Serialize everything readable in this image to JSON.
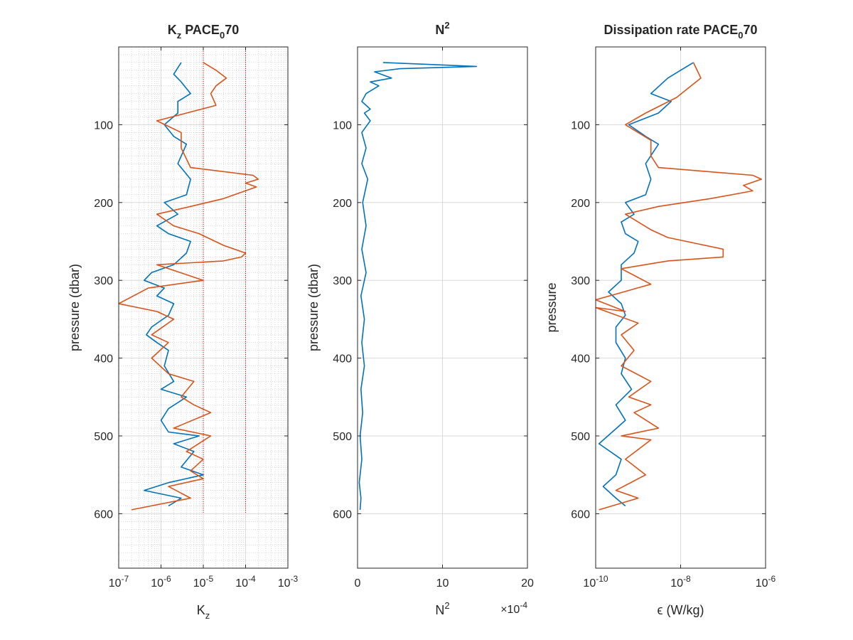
{
  "figure": {
    "background": "#ffffff"
  },
  "colors": {
    "blue": "#0072BD",
    "orange": "#D95319",
    "axis": "#262626",
    "grid": "#d9d9d9",
    "guide": "#cc0000"
  },
  "chart_data": [
    {
      "type": "line",
      "title": {
        "base": "K",
        "sub": "z",
        "rest": " PACE",
        "sub2": "0",
        "tail": "70"
      },
      "xlabel": {
        "base": "K",
        "sub": "z"
      },
      "ylabel": "pressure (dbar)",
      "xscale": "log",
      "xlim": [
        1e-07,
        0.001
      ],
      "ylim": [
        0,
        670
      ],
      "yreverse": true,
      "xticks": [
        1e-07,
        1e-06,
        1e-05,
        0.0001,
        0.001
      ],
      "xticklabels": [
        {
          "base": "10",
          "exp": "-7"
        },
        {
          "base": "10",
          "exp": "-6"
        },
        {
          "base": "10",
          "exp": "-5"
        },
        {
          "base": "10",
          "exp": "-4"
        },
        {
          "base": "10",
          "exp": "-3"
        }
      ],
      "yticks": [
        100,
        200,
        300,
        400,
        500,
        600
      ],
      "yticklabels": [
        "100",
        "200",
        "300",
        "400",
        "500",
        "600"
      ],
      "grid": "major-and-minor",
      "guides": [
        1e-05,
        0.0001
      ],
      "series": [
        {
          "color": "blue",
          "points": [
            [
              3e-06,
              20
            ],
            [
              2e-06,
              35
            ],
            [
              3e-06,
              45
            ],
            [
              5e-06,
              60
            ],
            [
              2.5e-06,
              70
            ],
            [
              2.5e-06,
              85
            ],
            [
              1.2e-06,
              100
            ],
            [
              2e-06,
              115
            ],
            [
              4e-06,
              125
            ],
            [
              2.5e-06,
              150
            ],
            [
              5e-06,
              170
            ],
            [
              4e-06,
              190
            ],
            [
              1.2e-06,
              200
            ],
            [
              2.5e-06,
              215
            ],
            [
              8e-07,
              230
            ],
            [
              1.5e-06,
              240
            ],
            [
              5e-06,
              250
            ],
            [
              4e-06,
              265
            ],
            [
              2e-06,
              280
            ],
            [
              6e-07,
              290
            ],
            [
              4e-07,
              300
            ],
            [
              1.2e-06,
              310
            ],
            [
              8e-07,
              320
            ],
            [
              2e-06,
              330
            ],
            [
              1.5e-06,
              345
            ],
            [
              6e-07,
              360
            ],
            [
              4.5e-07,
              370
            ],
            [
              8e-07,
              380
            ],
            [
              1.5e-06,
              390
            ],
            [
              1.2e-06,
              410
            ],
            [
              2e-06,
              430
            ],
            [
              1e-06,
              440
            ],
            [
              4e-06,
              450
            ],
            [
              1.5e-06,
              465
            ],
            [
              1e-06,
              480
            ],
            [
              1.5e-06,
              495
            ],
            [
              8e-06,
              500
            ],
            [
              2e-06,
              510
            ],
            [
              6e-06,
              520
            ],
            [
              3e-06,
              540
            ],
            [
              1e-05,
              550
            ],
            [
              1.5e-06,
              560
            ],
            [
              4e-07,
              570
            ],
            [
              3e-06,
              580
            ],
            [
              1.5e-06,
              590
            ]
          ]
        },
        {
          "color": "orange",
          "points": [
            [
              1e-05,
              20
            ],
            [
              2e-05,
              30
            ],
            [
              3.5e-05,
              40
            ],
            [
              2e-05,
              50
            ],
            [
              1.5e-05,
              60
            ],
            [
              2e-05,
              75
            ],
            [
              8e-07,
              95
            ],
            [
              3e-06,
              110
            ],
            [
              3e-06,
              130
            ],
            [
              5e-06,
              155
            ],
            [
              0.00015,
              165
            ],
            [
              0.0002,
              170
            ],
            [
              0.0001,
              175
            ],
            [
              0.00018,
              180
            ],
            [
              3e-05,
              195
            ],
            [
              5e-06,
              205
            ],
            [
              8e-07,
              215
            ],
            [
              2e-06,
              230
            ],
            [
              8e-06,
              240
            ],
            [
              3e-05,
              255
            ],
            [
              0.0001,
              265
            ],
            [
              8e-05,
              270
            ],
            [
              3e-05,
              275
            ],
            [
              8e-07,
              280
            ],
            [
              1e-05,
              300
            ],
            [
              5e-07,
              310
            ],
            [
              1e-07,
              330
            ],
            [
              8e-07,
              340
            ],
            [
              2e-06,
              350
            ],
            [
              6e-07,
              370
            ],
            [
              1.5e-06,
              380
            ],
            [
              6e-07,
              400
            ],
            [
              1.5e-06,
              420
            ],
            [
              6e-06,
              430
            ],
            [
              3e-06,
              450
            ],
            [
              6e-06,
              460
            ],
            [
              1.5e-05,
              470
            ],
            [
              2e-06,
              490
            ],
            [
              1.5e-05,
              500
            ],
            [
              4e-06,
              520
            ],
            [
              1e-05,
              530
            ],
            [
              5e-06,
              545
            ],
            [
              1e-05,
              555
            ],
            [
              1.5e-06,
              565
            ],
            [
              5e-06,
              580
            ],
            [
              2e-07,
              595
            ]
          ]
        }
      ]
    },
    {
      "type": "line",
      "title": {
        "base": "N",
        "exp": "2"
      },
      "xlabel": {
        "base": "N",
        "exp": "2"
      },
      "exponent_label": {
        "base": "×10",
        "exp": "-4"
      },
      "xscale": "linear",
      "xlim": [
        0,
        20
      ],
      "ylim": [
        0,
        670
      ],
      "yreverse": true,
      "xticks": [
        0,
        10,
        20
      ],
      "xticklabels": [
        "0",
        "10",
        "20"
      ],
      "yticks": [
        100,
        200,
        300,
        400,
        500,
        600
      ],
      "yticklabels": [
        "100",
        "200",
        "300",
        "400",
        "500",
        "600"
      ],
      "ylabel": "pressure (dbar)",
      "grid": "major",
      "series": [
        {
          "color": "blue",
          "points": [
            [
              3,
              20
            ],
            [
              14,
              25
            ],
            [
              5,
              28
            ],
            [
              2,
              32
            ],
            [
              4,
              40
            ],
            [
              1.5,
              45
            ],
            [
              2.5,
              50
            ],
            [
              1,
              60
            ],
            [
              0.5,
              70
            ],
            [
              1.5,
              80
            ],
            [
              0.8,
              85
            ],
            [
              1.5,
              95
            ],
            [
              0.5,
              110
            ],
            [
              1,
              130
            ],
            [
              0.5,
              150
            ],
            [
              1.2,
              170
            ],
            [
              0.6,
              200
            ],
            [
              1,
              230
            ],
            [
              0.5,
              260
            ],
            [
              1,
              290
            ],
            [
              0.4,
              320
            ],
            [
              0.8,
              350
            ],
            [
              0.5,
              380
            ],
            [
              0.8,
              410
            ],
            [
              0.4,
              440
            ],
            [
              0.6,
              470
            ],
            [
              0.3,
              500
            ],
            [
              0.5,
              530
            ],
            [
              0.2,
              560
            ],
            [
              0.4,
              580
            ],
            [
              0.3,
              595
            ]
          ]
        }
      ]
    },
    {
      "type": "line",
      "title": {
        "base": "Dissipation rate PACE",
        "sub": "0",
        "tail": "70"
      },
      "xlabel": "ϵ (W/kg)",
      "ylabel": "pressure",
      "xscale": "log",
      "xlim": [
        1e-10,
        1e-06
      ],
      "ylim": [
        0,
        670
      ],
      "yreverse": true,
      "xticks": [
        1e-10,
        1e-08,
        1e-06
      ],
      "xticklabels": [
        {
          "base": "10",
          "exp": "-10"
        },
        {
          "base": "10",
          "exp": "-8"
        },
        {
          "base": "10",
          "exp": "-6"
        }
      ],
      "yticks": [
        100,
        200,
        300,
        400,
        500,
        600
      ],
      "yticklabels": [
        "100",
        "200",
        "300",
        "400",
        "500",
        "600"
      ],
      "grid": "major",
      "series": [
        {
          "color": "blue",
          "points": [
            [
              2e-08,
              20
            ],
            [
              1e-08,
              30
            ],
            [
              5e-09,
              40
            ],
            [
              2e-09,
              60
            ],
            [
              6e-09,
              70
            ],
            [
              3e-09,
              85
            ],
            [
              6e-10,
              100
            ],
            [
              1.5e-09,
              115
            ],
            [
              3e-09,
              125
            ],
            [
              1.5e-09,
              150
            ],
            [
              2e-09,
              170
            ],
            [
              1.5e-09,
              190
            ],
            [
              5e-10,
              200
            ],
            [
              8e-10,
              215
            ],
            [
              4e-10,
              225
            ],
            [
              5e-10,
              240
            ],
            [
              1e-09,
              250
            ],
            [
              8e-10,
              265
            ],
            [
              4e-10,
              280
            ],
            [
              4e-10,
              300
            ],
            [
              2e-10,
              315
            ],
            [
              4e-10,
              330
            ],
            [
              5e-10,
              345
            ],
            [
              3e-10,
              360
            ],
            [
              3e-10,
              380
            ],
            [
              5e-10,
              400
            ],
            [
              4e-10,
              420
            ],
            [
              7e-10,
              440
            ],
            [
              3e-10,
              460
            ],
            [
              5e-10,
              480
            ],
            [
              1.2e-10,
              510
            ],
            [
              4e-10,
              530
            ],
            [
              3e-10,
              550
            ],
            [
              1.5e-10,
              565
            ],
            [
              3e-10,
              580
            ],
            [
              5e-10,
              590
            ]
          ]
        },
        {
          "color": "orange",
          "points": [
            [
              2e-08,
              20
            ],
            [
              3e-08,
              40
            ],
            [
              8e-09,
              65
            ],
            [
              1.5e-09,
              85
            ],
            [
              5e-10,
              100
            ],
            [
              2e-09,
              120
            ],
            [
              2e-09,
              140
            ],
            [
              3e-09,
              155
            ],
            [
              5e-07,
              165
            ],
            [
              8e-07,
              170
            ],
            [
              3e-07,
              178
            ],
            [
              5e-07,
              185
            ],
            [
              5e-08,
              195
            ],
            [
              3e-09,
              205
            ],
            [
              5e-10,
              215
            ],
            [
              2e-09,
              235
            ],
            [
              5e-09,
              245
            ],
            [
              1e-07,
              260
            ],
            [
              1e-07,
              270
            ],
            [
              5e-09,
              275
            ],
            [
              4e-10,
              285
            ],
            [
              2e-09,
              305
            ],
            [
              1e-10,
              325
            ],
            [
              5e-10,
              340
            ],
            [
              1e-10,
              335
            ],
            [
              1e-09,
              355
            ],
            [
              4e-10,
              370
            ],
            [
              8e-10,
              390
            ],
            [
              4e-10,
              410
            ],
            [
              2e-09,
              430
            ],
            [
              6e-10,
              450
            ],
            [
              2e-09,
              460
            ],
            [
              8e-10,
              470
            ],
            [
              3e-09,
              490
            ],
            [
              4e-10,
              500
            ],
            [
              2e-09,
              505
            ],
            [
              5e-10,
              530
            ],
            [
              1.5e-09,
              550
            ],
            [
              3e-10,
              570
            ],
            [
              1e-09,
              580
            ],
            [
              1.2e-10,
              595
            ]
          ]
        }
      ]
    }
  ]
}
